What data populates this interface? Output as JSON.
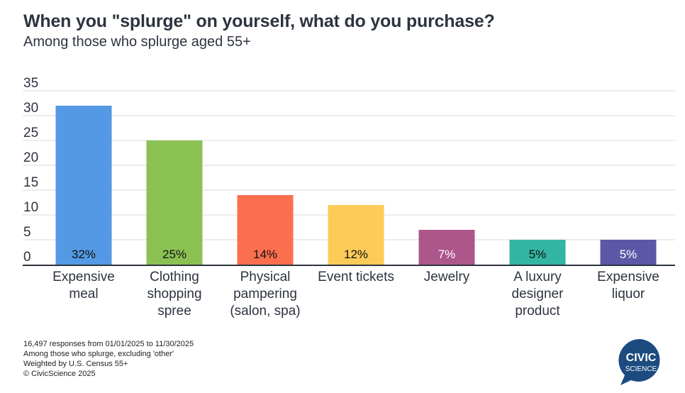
{
  "chart_data": {
    "type": "bar",
    "title": "When you \"splurge\" on yourself, what do you purchase?",
    "subtitle": "Among those who splurge aged 55+",
    "xlabel": "",
    "ylabel": "",
    "ylim": [
      0,
      35
    ],
    "yticks": [
      "0",
      "5",
      "10",
      "15",
      "20",
      "25",
      "30",
      "35"
    ],
    "ytick_values": [
      0,
      5,
      10,
      15,
      20,
      25,
      30,
      35
    ],
    "grid": true,
    "categories": [
      [
        "Expensive",
        "meal"
      ],
      [
        "Clothing",
        "shopping",
        "spree"
      ],
      [
        "Physical",
        "pampering",
        "(salon, spa)"
      ],
      [
        "Event tickets"
      ],
      [
        "Jewelry"
      ],
      [
        "A luxury",
        "designer",
        "product"
      ],
      [
        "Expensive",
        "liquor"
      ]
    ],
    "values": [
      32,
      25,
      14,
      12,
      7,
      5,
      5
    ],
    "data_labels": [
      "32%",
      "25%",
      "14%",
      "12%",
      "7%",
      "5%",
      "5%"
    ],
    "colors": [
      "#5499e3",
      "#8bc152",
      "#fb6f4f",
      "#fdcb58",
      "#ad568c",
      "#32b6a3",
      "#5c58a7"
    ],
    "label_colors": [
      "#111111",
      "#111111",
      "#111111",
      "#111111",
      "#ffffff",
      "#111111",
      "#ffffff"
    ]
  },
  "footnotes": [
    "16,497 responses from 01/01/2025 to 11/30/2025",
    "Among those who splurge, excluding 'other'",
    "Weighted by U.S. Census 55+",
    "© CivicScience 2025"
  ],
  "logo": {
    "line1": "CIVIC",
    "line2": "SCIENCE",
    "color": "#1c4b7f"
  }
}
